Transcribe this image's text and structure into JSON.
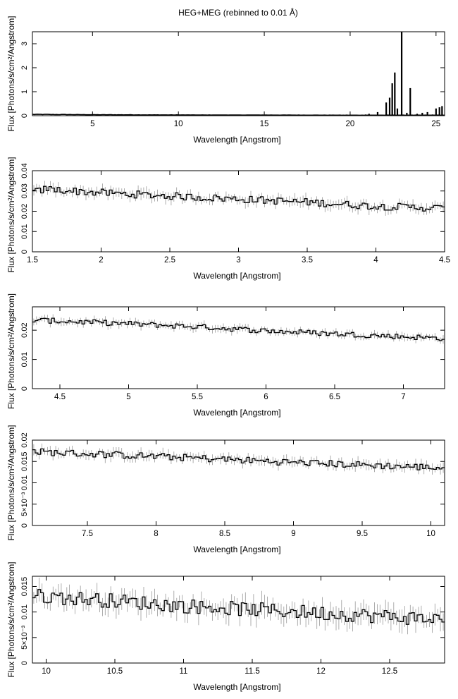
{
  "figure": {
    "title": "HEG+MEG (rebinned to 0.01 Å)"
  },
  "colors": {
    "line": "#000000",
    "errorbar": "#9a9a9a",
    "background": "#ffffff"
  },
  "chart_data": [
    {
      "type": "line",
      "xlabel": "Wavelength [Angstrom]",
      "ylabel": "Flux [Photons/s/cm²/Angstrom]",
      "xlim": [
        1.5,
        25.5
      ],
      "ylim": [
        0,
        3.5
      ],
      "xticks": [
        5,
        10,
        15,
        20,
        25
      ],
      "xtick_labels": [
        "5",
        "10",
        "15",
        "20",
        "25"
      ],
      "yticks": [
        0,
        1,
        2,
        3
      ],
      "ytick_labels": [
        "0",
        "1",
        "2",
        "3"
      ],
      "baseline": [
        [
          1.5,
          0.055
        ],
        [
          5,
          0.04
        ],
        [
          10,
          0.03
        ],
        [
          15,
          0.025
        ],
        [
          20,
          0.02
        ],
        [
          25.5,
          0.02
        ]
      ],
      "lines": [
        [
          20.9,
          0.05
        ],
        [
          21.1,
          0.08
        ],
        [
          21.6,
          0.15
        ],
        [
          22.1,
          0.55
        ],
        [
          22.3,
          0.75
        ],
        [
          22.45,
          1.35
        ],
        [
          22.6,
          1.8
        ],
        [
          22.75,
          0.3
        ],
        [
          23.0,
          3.5
        ],
        [
          23.3,
          0.12
        ],
        [
          23.5,
          1.15
        ],
        [
          23.9,
          0.08
        ],
        [
          24.2,
          0.12
        ],
        [
          24.5,
          0.15
        ],
        [
          24.8,
          0.05
        ],
        [
          25.0,
          0.3
        ],
        [
          25.2,
          0.35
        ],
        [
          25.35,
          0.4
        ]
      ]
    },
    {
      "type": "line",
      "xlabel": "Wavelength [Angstrom]",
      "ylabel": "Flux [Photons/s/cm²/Angstrom]",
      "xlim": [
        1.5,
        4.5
      ],
      "ylim": [
        0,
        0.04
      ],
      "xticks": [
        1.5,
        2,
        2.5,
        3,
        3.5,
        4,
        4.5
      ],
      "xtick_labels": [
        "1.5",
        "2",
        "2.5",
        "3",
        "3.5",
        "4",
        "4.5"
      ],
      "yticks": [
        0,
        0.01,
        0.02,
        0.03,
        0.04
      ],
      "ytick_labels": [
        "0",
        "0.01",
        "0.02",
        "0.03",
        "0.04"
      ],
      "trend": [
        [
          1.5,
          0.029
        ],
        [
          1.6,
          0.031
        ],
        [
          1.9,
          0.0295
        ],
        [
          2.5,
          0.0275
        ],
        [
          3.0,
          0.026
        ],
        [
          3.5,
          0.0245
        ],
        [
          4.0,
          0.0225
        ],
        [
          4.5,
          0.0215
        ]
      ],
      "noise": 0.0018
    },
    {
      "type": "line",
      "xlabel": "Wavelength [Angstrom]",
      "ylabel": "Flux [Photons/s/cm²/Angstrom]",
      "xlim": [
        4.3,
        7.3
      ],
      "ylim": [
        0,
        0.028
      ],
      "xticks": [
        4.5,
        5,
        5.5,
        6,
        6.5,
        7
      ],
      "xtick_labels": [
        "4.5",
        "5",
        "5.5",
        "6",
        "6.5",
        "7"
      ],
      "yticks": [
        0,
        0.01,
        0.02
      ],
      "ytick_labels": [
        "0",
        "0.01",
        "0.02"
      ],
      "trend": [
        [
          4.3,
          0.0235
        ],
        [
          5.0,
          0.0222
        ],
        [
          5.5,
          0.0212
        ],
        [
          6.0,
          0.0198
        ],
        [
          6.5,
          0.0188
        ],
        [
          7.0,
          0.0178
        ],
        [
          7.3,
          0.0172
        ]
      ],
      "noise": 0.0009
    },
    {
      "type": "line",
      "xlabel": "Wavelength [Angstrom]",
      "ylabel": "Flux [Photons/s/cm²/Angstrom]",
      "xlim": [
        7.1,
        10.1
      ],
      "ylim": [
        0,
        0.02
      ],
      "xticks": [
        7.5,
        8,
        8.5,
        9,
        9.5,
        10
      ],
      "xtick_labels": [
        "7.5",
        "8",
        "8.5",
        "9",
        "9.5",
        "10"
      ],
      "yticks": [
        0,
        0.005,
        0.01,
        0.015,
        0.02
      ],
      "ytick_labels": [
        "0",
        "5×10⁻³",
        "0.01",
        "0.015",
        "0.02"
      ],
      "trend": [
        [
          7.1,
          0.0173
        ],
        [
          7.5,
          0.0168
        ],
        [
          8.0,
          0.0162
        ],
        [
          8.5,
          0.0155
        ],
        [
          9.0,
          0.0148
        ],
        [
          9.5,
          0.0142
        ],
        [
          10.1,
          0.0135
        ]
      ],
      "noise": 0.0008
    },
    {
      "type": "line",
      "xlabel": "Wavelength [Angstrom]",
      "ylabel": "Flux [Photons/s/cm²/Angstrom]",
      "xlim": [
        9.9,
        12.9
      ],
      "ylim": [
        0,
        0.017
      ],
      "xticks": [
        10,
        10.5,
        11,
        11.5,
        12,
        12.5
      ],
      "xtick_labels": [
        "10",
        "10.5",
        "11",
        "11.5",
        "12",
        "12.5"
      ],
      "yticks": [
        0,
        0.005,
        0.01,
        0.015
      ],
      "ytick_labels": [
        "0",
        "5×10⁻³",
        "0.01",
        "0.015"
      ],
      "trend": [
        [
          9.9,
          0.0132
        ],
        [
          10.5,
          0.0122
        ],
        [
          11.0,
          0.0112
        ],
        [
          11.5,
          0.0105
        ],
        [
          12.0,
          0.0098
        ],
        [
          12.5,
          0.0091
        ],
        [
          12.9,
          0.0085
        ]
      ],
      "noise": 0.0014
    }
  ]
}
